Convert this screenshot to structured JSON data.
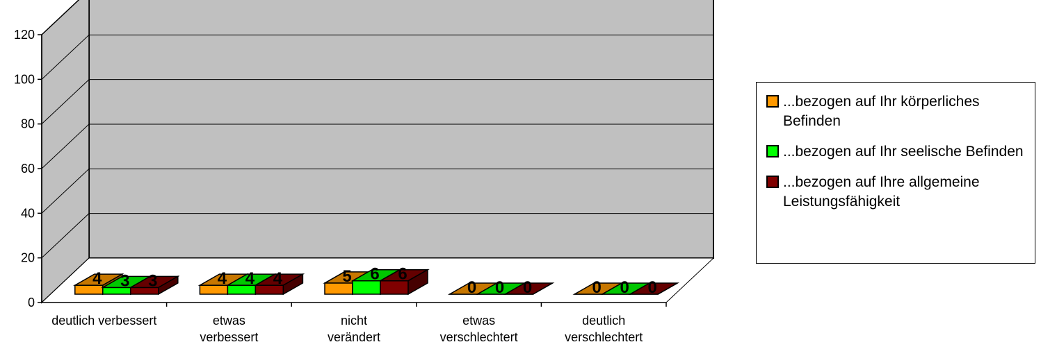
{
  "chart_data": {
    "type": "bar",
    "categories": [
      [
        "deutlich verbessert"
      ],
      [
        "etwas",
        "verbessert"
      ],
      [
        "nicht",
        "verändert"
      ],
      [
        "etwas",
        "verschlechtert"
      ],
      [
        "deutlich",
        "verschlechtert"
      ]
    ],
    "series": [
      {
        "name": "...bezogen auf Ihr körperliches Befinden",
        "values": [
          4,
          4,
          5,
          0,
          0
        ],
        "color": "#ff9900"
      },
      {
        "name": "...bezogen auf Ihr seelische Befinden",
        "values": [
          3,
          4,
          6,
          0,
          0
        ],
        "color": "#00ff00"
      },
      {
        "name": "...bezogen auf Ihre allgemeine Leistungsfähigkeit",
        "values": [
          3,
          4,
          6,
          0,
          0
        ],
        "color": "#800000"
      }
    ],
    "yticks": [
      0,
      20,
      40,
      60,
      80,
      100,
      120
    ],
    "ylim": [
      0,
      120
    ],
    "wall_color": "#c0c0c0",
    "grid": true,
    "legend_position": "right",
    "data_labels": true,
    "projection": "3d"
  }
}
